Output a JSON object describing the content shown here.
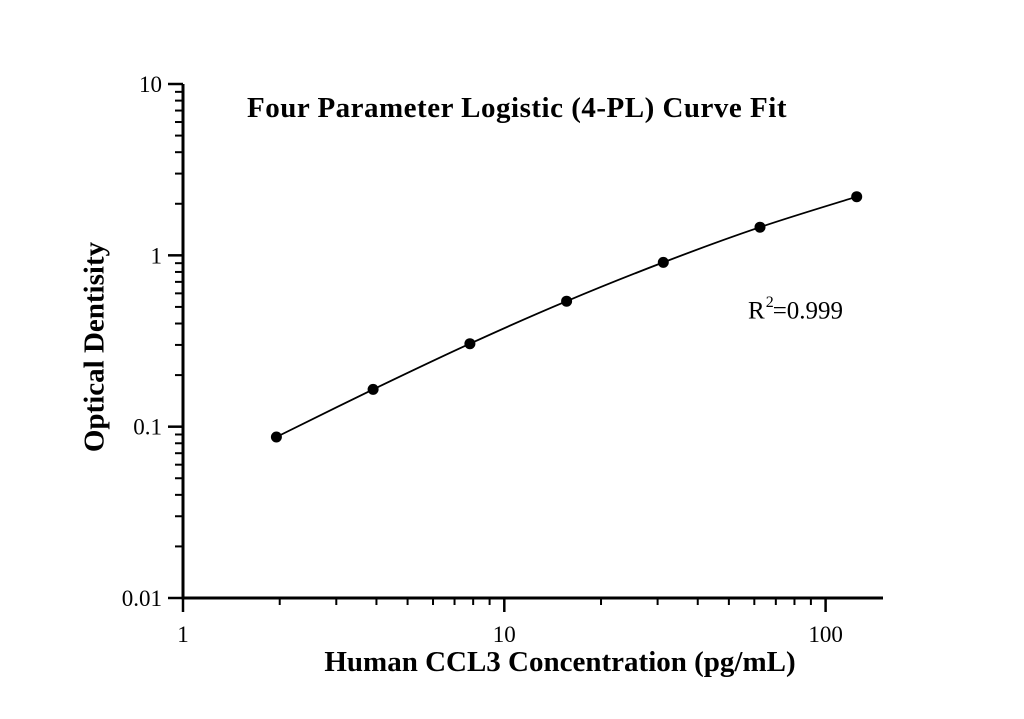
{
  "chart_data": {
    "type": "line",
    "title": "Four Parameter Logistic (4-PL) Curve Fit",
    "xlabel": "Human CCL3 Concentration (pg/mL)",
    "ylabel": "Optical Dentisity",
    "annotation": {
      "base": "R",
      "sup": "2",
      "rest": "=0.999"
    },
    "x": [
      1.953,
      3.906,
      7.813,
      15.625,
      31.25,
      62.5,
      125
    ],
    "y": [
      0.087,
      0.165,
      0.305,
      0.54,
      0.91,
      1.46,
      2.2
    ],
    "x_axis": {
      "scale": "log",
      "range": [
        1,
        151
      ],
      "ticks": [
        1,
        10,
        100
      ],
      "tick_labels": [
        "1",
        "10",
        "100"
      ],
      "minor_ticks": "2-9 per decade"
    },
    "y_axis": {
      "scale": "log",
      "range": [
        0.01,
        10
      ],
      "ticks": [
        10,
        1,
        0.1,
        0.01
      ],
      "tick_labels": [
        "10",
        "1",
        "0.1",
        "0.01"
      ],
      "minor_ticks": "2-9 per decade"
    },
    "legend": "none",
    "grid": "off",
    "marker": "filled-circle",
    "series_color": "#000000",
    "background_color": "#ffffff"
  }
}
